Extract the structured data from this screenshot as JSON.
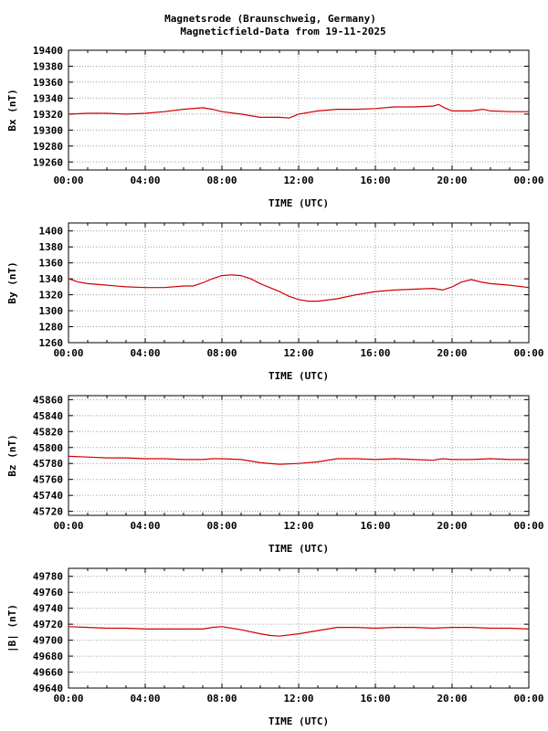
{
  "title": {
    "line1": "Magnetsrode (Braunschweig, Germany)",
    "line2": "Magneticfield-Data from 19-11-2025"
  },
  "chart_data": [
    {
      "type": "line",
      "ylabel": "Bx (nT)",
      "xlabel": "TIME (UTC)",
      "x_ticks": [
        "00:00",
        "04:00",
        "08:00",
        "12:00",
        "16:00",
        "20:00",
        "00:00"
      ],
      "xlim": [
        0,
        24
      ],
      "ylim": [
        19250,
        19400
      ],
      "y_ticks": [
        19260,
        19280,
        19300,
        19320,
        19340,
        19360,
        19380,
        19400
      ],
      "grid": true,
      "color": "#d00000",
      "x": [
        0,
        1,
        2,
        3,
        4,
        5,
        6,
        7,
        7.5,
        8,
        9,
        10,
        11,
        11.5,
        12,
        13,
        14,
        15,
        16,
        17,
        18,
        19,
        19.3,
        19.6,
        20,
        21,
        21.6,
        22,
        23,
        24
      ],
      "y": [
        19320,
        19321,
        19321,
        19320,
        19321,
        19323,
        19326,
        19328,
        19326,
        19323,
        19320,
        19316,
        19316,
        19315,
        19320,
        19324,
        19326,
        19326,
        19327,
        19329,
        19329,
        19330,
        19332,
        19328,
        19324,
        19324,
        19326,
        19324,
        19323,
        19323
      ]
    },
    {
      "type": "line",
      "ylabel": "By (nT)",
      "xlabel": "TIME (UTC)",
      "x_ticks": [
        "00:00",
        "04:00",
        "08:00",
        "12:00",
        "16:00",
        "20:00",
        "00:00"
      ],
      "xlim": [
        0,
        24
      ],
      "ylim": [
        1260,
        1410
      ],
      "y_ticks": [
        1260,
        1280,
        1300,
        1320,
        1340,
        1360,
        1380,
        1400
      ],
      "grid": true,
      "color": "#d00000",
      "x": [
        0,
        0.5,
        1,
        2,
        3,
        4,
        5,
        6,
        6.5,
        7,
        7.5,
        8,
        8.5,
        9,
        9.5,
        10,
        11,
        11.5,
        12,
        12.5,
        13,
        14,
        15,
        16,
        17,
        18,
        19,
        19.5,
        20,
        20.5,
        21,
        21.5,
        22,
        23,
        24
      ],
      "y": [
        1340,
        1336,
        1334,
        1332,
        1330,
        1329,
        1329,
        1331,
        1331,
        1335,
        1340,
        1344,
        1345,
        1344,
        1340,
        1334,
        1324,
        1318,
        1314,
        1312,
        1312,
        1315,
        1320,
        1324,
        1326,
        1327,
        1328,
        1326,
        1330,
        1336,
        1339,
        1336,
        1334,
        1332,
        1329
      ]
    },
    {
      "type": "line",
      "ylabel": "Bz (nT)",
      "xlabel": "TIME (UTC)",
      "x_ticks": [
        "00:00",
        "04:00",
        "08:00",
        "12:00",
        "16:00",
        "20:00",
        "00:00"
      ],
      "xlim": [
        0,
        24
      ],
      "ylim": [
        45715,
        45865
      ],
      "y_ticks": [
        45720,
        45740,
        45760,
        45780,
        45800,
        45820,
        45840,
        45860
      ],
      "grid": true,
      "color": "#d00000",
      "x": [
        0,
        1,
        2,
        3,
        4,
        5,
        6,
        7,
        7.5,
        8,
        9,
        10,
        11,
        12,
        13,
        14,
        15,
        16,
        17,
        18,
        19,
        19.5,
        20,
        21,
        22,
        23,
        24
      ],
      "y": [
        45789,
        45788,
        45787,
        45787,
        45786,
        45786,
        45785,
        45785,
        45786,
        45786,
        45785,
        45781,
        45779,
        45780,
        45782,
        45786,
        45786,
        45785,
        45786,
        45785,
        45784,
        45786,
        45785,
        45785,
        45786,
        45785,
        45785
      ]
    },
    {
      "type": "line",
      "ylabel": "|B| (nT)",
      "xlabel": "TIME (UTC)",
      "x_ticks": [
        "00:00",
        "04:00",
        "08:00",
        "12:00",
        "16:00",
        "20:00",
        "00:00"
      ],
      "xlim": [
        0,
        24
      ],
      "ylim": [
        49640,
        49790
      ],
      "y_ticks": [
        49640,
        49660,
        49680,
        49700,
        49720,
        49740,
        49760,
        49780
      ],
      "grid": true,
      "color": "#d00000",
      "x": [
        0,
        1,
        2,
        3,
        4,
        5,
        6,
        7,
        7.5,
        8,
        9,
        10,
        10.5,
        11,
        12,
        13,
        14,
        15,
        16,
        17,
        18,
        19,
        20,
        21,
        22,
        23,
        24
      ],
      "y": [
        49717,
        49716,
        49715,
        49715,
        49714,
        49714,
        49714,
        49714,
        49716,
        49717,
        49713,
        49708,
        49706,
        49705,
        49708,
        49712,
        49716,
        49716,
        49715,
        49716,
        49716,
        49715,
        49716,
        49716,
        49715,
        49715,
        49714
      ]
    }
  ]
}
